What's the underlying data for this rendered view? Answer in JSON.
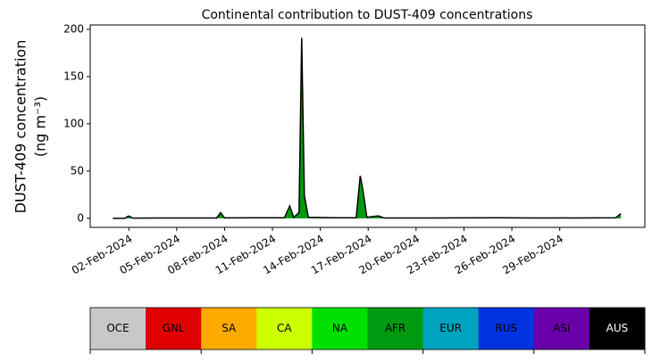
{
  "chart_data": {
    "type": "stacked_area",
    "title": "Continental contribution to DUST-409 concentrations",
    "ylabel": [
      "DUST-409 concentration",
      "(ng m⁻³)"
    ],
    "x": [
      "2024-02-01T00:00",
      "2024-02-01T18:00",
      "2024-02-02T00:00",
      "2024-02-02T06:00",
      "2024-02-04T00:00",
      "2024-02-06T00:00",
      "2024-02-07T12:00",
      "2024-02-07T18:00",
      "2024-02-08T00:00",
      "2024-02-10T00:00",
      "2024-02-11T18:00",
      "2024-02-12T02:00",
      "2024-02-12T08:00",
      "2024-02-12T16:00",
      "2024-02-12T20:00",
      "2024-02-13T00:00",
      "2024-02-13T06:00",
      "2024-02-15T00:00",
      "2024-02-16T06:00",
      "2024-02-16T12:00",
      "2024-02-16T16:00",
      "2024-02-16T22:00",
      "2024-02-17T15:00",
      "2024-02-18T00:00",
      "2024-02-21T00:00",
      "2024-02-25T00:00",
      "2024-02-28T00:00",
      "2024-03-03T12:00",
      "2024-03-03T20:00"
    ],
    "series": [
      {
        "name": "AFR",
        "color": "#009a10",
        "values": [
          0,
          0,
          2,
          0.2,
          0.3,
          0.3,
          0.3,
          5,
          0.4,
          0.5,
          0.5,
          10,
          1,
          5,
          180,
          20,
          1,
          0.5,
          0.5,
          40,
          25,
          1,
          2,
          0.3,
          0.3,
          0.5,
          0.3,
          0.5,
          4
        ]
      },
      {
        "name": "NA",
        "color": "#00e000",
        "values": [
          0,
          0,
          0.5,
          0,
          0,
          0,
          0,
          1,
          0,
          0,
          0,
          3,
          0,
          1,
          11,
          4,
          0,
          0,
          0,
          5,
          5,
          0,
          0.5,
          0,
          0,
          0,
          0,
          0,
          1
        ]
      }
    ],
    "xlim": [
      "2024-01-30T14:00",
      "2024-03-05T08:00"
    ],
    "xticks": [
      {
        "value": "2024-02-02T00:00",
        "label": "02-Feb-2024"
      },
      {
        "value": "2024-02-05T00:00",
        "label": "05-Feb-2024"
      },
      {
        "value": "2024-02-08T00:00",
        "label": "08-Feb-2024"
      },
      {
        "value": "2024-02-11T00:00",
        "label": "11-Feb-2024"
      },
      {
        "value": "2024-02-14T00:00",
        "label": "14-Feb-2024"
      },
      {
        "value": "2024-02-17T00:00",
        "label": "17-Feb-2024"
      },
      {
        "value": "2024-02-20T00:00",
        "label": "20-Feb-2024"
      },
      {
        "value": "2024-02-23T00:00",
        "label": "23-Feb-2024"
      },
      {
        "value": "2024-02-26T00:00",
        "label": "26-Feb-2024"
      },
      {
        "value": "2024-02-29T00:00",
        "label": "29-Feb-2024"
      }
    ],
    "ylim": [
      -9.6,
      204.6
    ],
    "yticks": [
      0,
      50,
      100,
      150,
      200
    ],
    "legend": [
      {
        "name": "OCE",
        "color": "#c8c8c8"
      },
      {
        "name": "GNL",
        "color": "#e00000"
      },
      {
        "name": "SA",
        "color": "#ffaa00"
      },
      {
        "name": "CA",
        "color": "#ccff00"
      },
      {
        "name": "NA",
        "color": "#00e000"
      },
      {
        "name": "AFR",
        "color": "#009a10"
      },
      {
        "name": "EUR",
        "color": "#00a3bf"
      },
      {
        "name": "RUS",
        "color": "#0033e0"
      },
      {
        "name": "ASI",
        "color": "#6a00aa"
      },
      {
        "name": "AUS",
        "color": "#000000"
      }
    ]
  }
}
